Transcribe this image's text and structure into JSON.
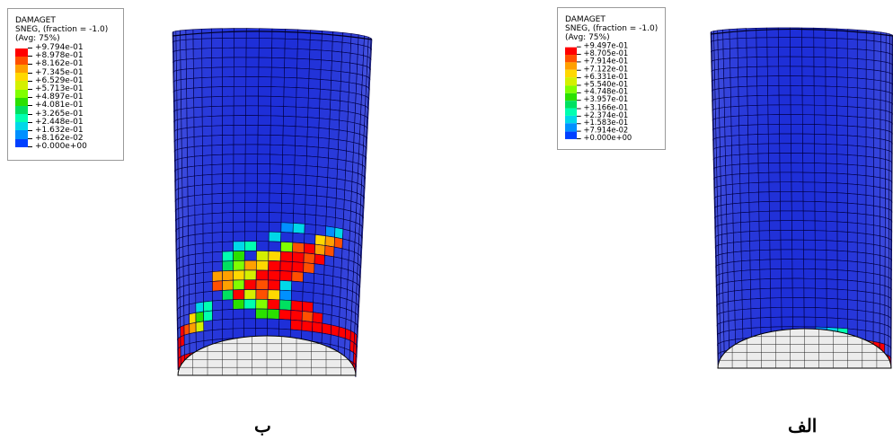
{
  "panels": [
    {
      "id": "b",
      "caption": "ب",
      "legend": {
        "title": "DAMAGET",
        "variable": "SNEG, (fraction = -1.0)",
        "avg": "(Avg: 75%)",
        "values": [
          "+9.794e-01",
          "+8.978e-01",
          "+8.162e-01",
          "+7.345e-01",
          "+6.529e-01",
          "+5.713e-01",
          "+4.897e-01",
          "+4.081e-01",
          "+3.265e-01",
          "+2.448e-01",
          "+1.632e-01",
          "+8.162e-02",
          "+0.000e+00"
        ]
      }
    },
    {
      "id": "alef",
      "caption": "الف",
      "legend": {
        "title": "DAMAGET",
        "variable": "SNEG, (fraction = -1.0)",
        "avg": "(Avg: 75%)",
        "values": [
          "+9.497e-01",
          "+8.705e-01",
          "+7.914e-01",
          "+7.122e-01",
          "+6.331e-01",
          "+5.540e-01",
          "+4.748e-01",
          "+3.957e-01",
          "+3.166e-01",
          "+2.374e-01",
          "+1.583e-01",
          "+7.914e-02",
          "+0.000e+00"
        ]
      }
    }
  ],
  "colors": {
    "scale": [
      "#ff0000",
      "#ff5000",
      "#ffa000",
      "#ffd800",
      "#d4f000",
      "#80ff00",
      "#2ae000",
      "#00e060",
      "#00ffb0",
      "#00d8e8",
      "#0090ff",
      "#0040ff",
      "#0000e0"
    ],
    "base": "#1e2fd8",
    "mesh": "#000044",
    "bottom_face": "#ececec"
  }
}
